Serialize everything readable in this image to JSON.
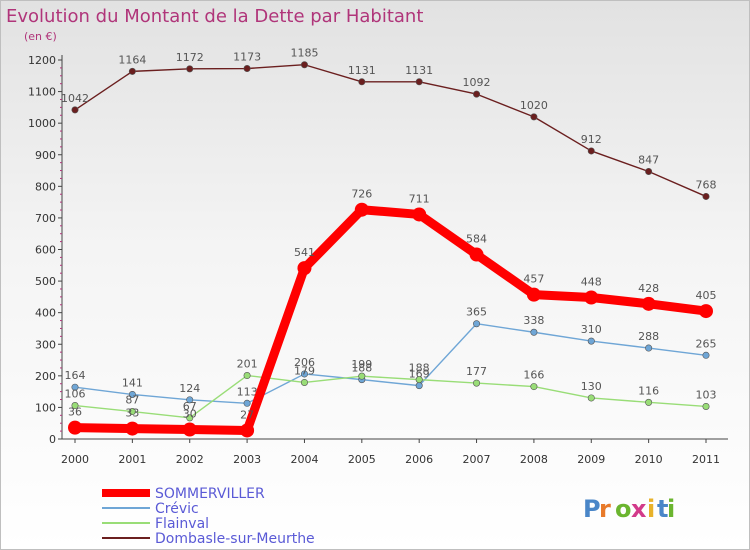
{
  "chart_data": {
    "type": "line",
    "title": "Evolution du Montant de la Dette par Habitant",
    "subtitle": "(en €)",
    "xlabel": "",
    "ylabel": "",
    "ylim": [
      0,
      1200
    ],
    "yticks": [
      0,
      100,
      200,
      300,
      400,
      500,
      600,
      700,
      800,
      900,
      1000,
      1100,
      1200
    ],
    "categories": [
      "2000",
      "2001",
      "2002",
      "2003",
      "2004",
      "2005",
      "2006",
      "2007",
      "2008",
      "2009",
      "2010",
      "2011"
    ],
    "series": [
      {
        "name": "Dombasle-sur-Meurthe",
        "color": "#6b1f1f",
        "values": [
          1042,
          1164,
          1172,
          1173,
          1185,
          1131,
          1131,
          1092,
          1020,
          912,
          847,
          768
        ]
      },
      {
        "name": "Crévic",
        "color": "#6fa6d6",
        "values": [
          164,
          141,
          124,
          113,
          206,
          188,
          169,
          365,
          338,
          310,
          288,
          265
        ]
      },
      {
        "name": "Flainval",
        "color": "#99dd77",
        "values": [
          106,
          87,
          67,
          201,
          179,
          199,
          188,
          177,
          166,
          130,
          116,
          103
        ]
      },
      {
        "name": "SOMMERVILLER",
        "color": "#ff0000",
        "values": [
          36,
          33,
          30,
          27,
          541,
          726,
          711,
          584,
          457,
          448,
          428,
          405
        ]
      }
    ],
    "legend": {
      "position": "bottom-left",
      "entries": [
        "SOMMERVILLER",
        "Crévic",
        "Flainval",
        "Dombasle-sur-Meurthe"
      ]
    },
    "grid": false
  },
  "branding": {
    "logo_text": "Proxiti"
  }
}
